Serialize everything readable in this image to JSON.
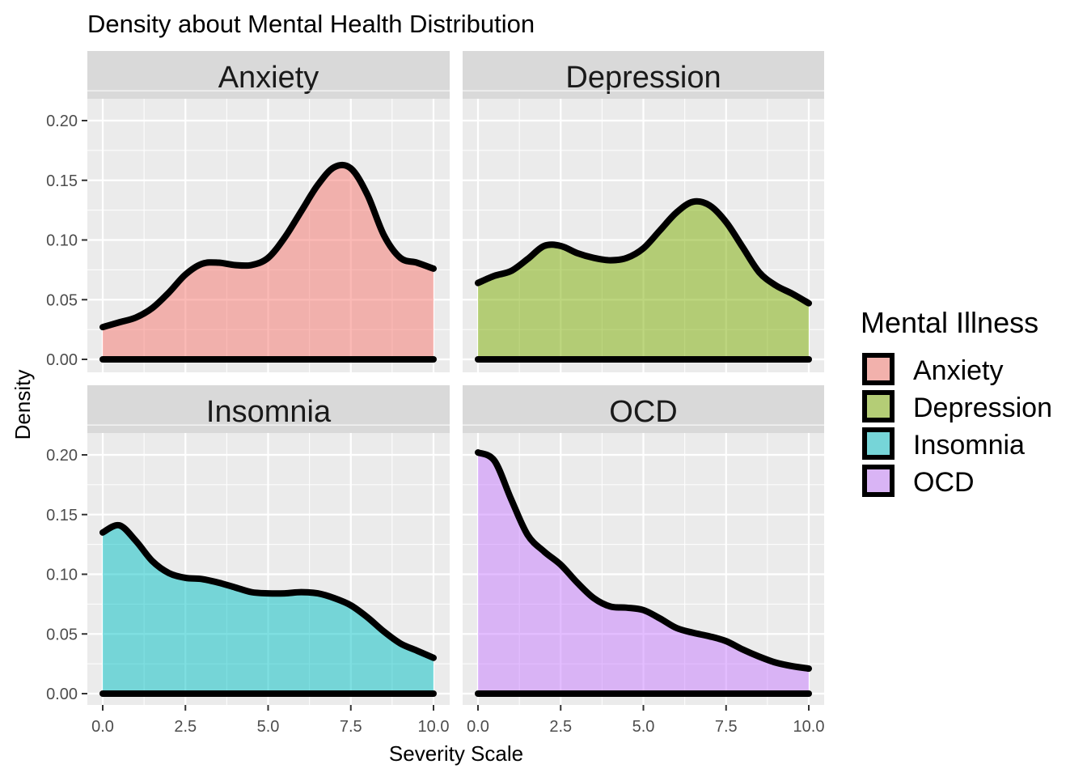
{
  "chart_data": {
    "type": "area",
    "title": "Density about Mental Health Distribution",
    "xlabel": "Severity Scale",
    "ylabel": "Density",
    "xlim": [
      0,
      10
    ],
    "ylim": [
      0,
      0.2
    ],
    "x_ticks": [
      "0.0",
      "2.5",
      "5.0",
      "7.5",
      "10.0"
    ],
    "y_ticks": [
      "0.00",
      "0.05",
      "0.10",
      "0.15",
      "0.20"
    ],
    "grid": true,
    "facets": [
      "Anxiety",
      "Depression",
      "Insomnia",
      "OCD"
    ],
    "legend": {
      "title": "Mental Illness",
      "position": "right",
      "entries": [
        "Anxiety",
        "Depression",
        "Insomnia",
        "OCD"
      ]
    },
    "series": [
      {
        "name": "Anxiety",
        "color": "#F8766D",
        "x": [
          0,
          0.5,
          1,
          1.5,
          2,
          2.5,
          3,
          3.5,
          4,
          4.5,
          5,
          5.5,
          6,
          6.5,
          7,
          7.5,
          8,
          8.5,
          9,
          9.5,
          10
        ],
        "y": [
          0.027,
          0.031,
          0.035,
          0.043,
          0.056,
          0.071,
          0.08,
          0.081,
          0.079,
          0.079,
          0.085,
          0.102,
          0.124,
          0.146,
          0.161,
          0.16,
          0.138,
          0.104,
          0.085,
          0.081,
          0.076
        ]
      },
      {
        "name": "Depression",
        "color": "#7CAE00",
        "x": [
          0,
          0.5,
          1,
          1.5,
          2,
          2.5,
          3,
          3.5,
          4,
          4.5,
          5,
          5.5,
          6,
          6.5,
          7,
          7.5,
          8,
          8.5,
          9,
          9.5,
          10
        ],
        "y": [
          0.064,
          0.07,
          0.074,
          0.084,
          0.095,
          0.095,
          0.089,
          0.085,
          0.083,
          0.085,
          0.093,
          0.108,
          0.123,
          0.132,
          0.129,
          0.115,
          0.094,
          0.073,
          0.062,
          0.055,
          0.047
        ]
      },
      {
        "name": "Insomnia",
        "color": "#00BFC4",
        "x": [
          0,
          0.5,
          1,
          1.5,
          2,
          2.5,
          3,
          3.5,
          4,
          4.5,
          5,
          5.5,
          6,
          6.5,
          7,
          7.5,
          8,
          8.5,
          9,
          9.5,
          10
        ],
        "y": [
          0.135,
          0.141,
          0.128,
          0.111,
          0.101,
          0.097,
          0.096,
          0.093,
          0.089,
          0.085,
          0.084,
          0.084,
          0.085,
          0.084,
          0.08,
          0.074,
          0.064,
          0.052,
          0.042,
          0.036,
          0.03
        ]
      },
      {
        "name": "OCD",
        "color": "#C77CFF",
        "x": [
          0,
          0.5,
          1,
          1.5,
          2,
          2.5,
          3,
          3.5,
          4,
          4.5,
          5,
          5.5,
          6,
          6.5,
          7,
          7.5,
          8,
          8.5,
          9,
          9.5,
          10
        ],
        "y": [
          0.202,
          0.195,
          0.163,
          0.133,
          0.119,
          0.108,
          0.093,
          0.08,
          0.073,
          0.072,
          0.07,
          0.063,
          0.055,
          0.051,
          0.048,
          0.044,
          0.037,
          0.031,
          0.026,
          0.023,
          0.021
        ]
      }
    ]
  }
}
